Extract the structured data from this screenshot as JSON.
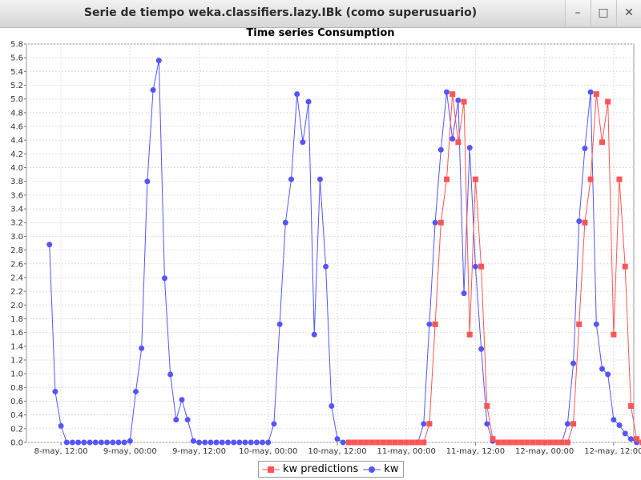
{
  "window": {
    "title": "Serie de tiempo weka.classifiers.lazy.IBk (como superusuario)",
    "controls": {
      "minimize": "–",
      "maximize": "□",
      "close": "✕"
    }
  },
  "chart_data": {
    "type": "line",
    "title": "Time series Consumption",
    "xlabel": "",
    "ylabel": "",
    "ylim": [
      0,
      5.8
    ],
    "y_ticks": [
      "0.0",
      "0.2",
      "0.4",
      "0.6",
      "0.8",
      "1.0",
      "1.2",
      "1.4",
      "1.6",
      "1.8",
      "2.0",
      "2.2",
      "2.4",
      "2.6",
      "2.8",
      "3.0",
      "3.2",
      "3.4",
      "3.6",
      "3.8",
      "4.0",
      "4.2",
      "4.4",
      "4.6",
      "4.8",
      "5.0",
      "5.2",
      "5.4",
      "5.6",
      "5.8"
    ],
    "x_ticks": [
      "8-may, 12:00",
      "9-may, 00:00",
      "9-may, 12:00",
      "10-may, 00:00",
      "10-may, 12:00",
      "11-may, 00:00",
      "11-may, 12:00",
      "12-may, 00:00",
      "12-may, 12:00"
    ],
    "x_unit": "hours since 8-may, 00:00",
    "x_start": 10,
    "x_step": 1,
    "grid": true,
    "legend_position": "bottom",
    "series": [
      {
        "name": "kw",
        "color": "#5555ff",
        "marker": "circle",
        "values": [
          2.88,
          0.74,
          0.24,
          0.0,
          0.0,
          0.0,
          0.0,
          0.0,
          0.0,
          0.0,
          0.0,
          0.0,
          0.0,
          0.0,
          0.02,
          0.74,
          1.37,
          3.8,
          5.13,
          5.56,
          2.39,
          0.99,
          0.33,
          0.62,
          0.33,
          0.02,
          0.0,
          0.0,
          0.0,
          0.0,
          0.0,
          0.0,
          0.0,
          0.0,
          0.0,
          0.0,
          0.0,
          0.0,
          0.0,
          0.27,
          1.72,
          3.2,
          3.83,
          5.07,
          4.37,
          4.96,
          1.57,
          3.83,
          2.56,
          0.53,
          0.05,
          0.0,
          0.0,
          0.0,
          0.0,
          0.0,
          0.0,
          0.0,
          0.0,
          0.0,
          0.0,
          0.0,
          0.0,
          0.0,
          0.0,
          0.27,
          1.72,
          3.2,
          4.26,
          5.1,
          4.42,
          4.98,
          2.17,
          4.29,
          2.56,
          1.36,
          0.27,
          0.02,
          0.0,
          0.0,
          0.0,
          0.0,
          0.0,
          0.0,
          0.0,
          0.0,
          0.0,
          0.0,
          0.0,
          0.0,
          0.27,
          1.15,
          3.22,
          4.28,
          5.1,
          1.72,
          1.07,
          0.99,
          0.33,
          0.25,
          0.13,
          0.05,
          0.0
        ]
      },
      {
        "name": "kw predictions",
        "color": "#ff5555",
        "marker": "square",
        "values": [
          null,
          null,
          null,
          null,
          null,
          null,
          null,
          null,
          null,
          null,
          null,
          null,
          null,
          null,
          null,
          null,
          null,
          null,
          null,
          null,
          null,
          null,
          null,
          null,
          null,
          null,
          null,
          null,
          null,
          null,
          null,
          null,
          null,
          null,
          null,
          null,
          null,
          null,
          null,
          null,
          null,
          null,
          null,
          null,
          null,
          null,
          null,
          null,
          null,
          null,
          null,
          null,
          0.0,
          0.0,
          0.0,
          0.0,
          0.0,
          0.0,
          0.0,
          0.0,
          0.0,
          0.0,
          0.0,
          0.0,
          0.0,
          0.0,
          0.27,
          1.72,
          3.2,
          3.83,
          5.07,
          4.37,
          4.96,
          1.57,
          3.83,
          2.56,
          0.53,
          0.05,
          0.0,
          0.0,
          0.0,
          0.0,
          0.0,
          0.0,
          0.0,
          0.0,
          0.0,
          0.0,
          0.0,
          0.0,
          0.0,
          0.27,
          1.72,
          3.2,
          3.83,
          5.07,
          4.37,
          4.96,
          1.57,
          3.83,
          2.56,
          0.53,
          0.05,
          0.0
        ]
      }
    ]
  },
  "legend": {
    "items": [
      {
        "label": "kw predictions",
        "color": "#ff5555",
        "marker": "square"
      },
      {
        "label": "kw",
        "color": "#5555ff",
        "marker": "circle"
      }
    ]
  }
}
